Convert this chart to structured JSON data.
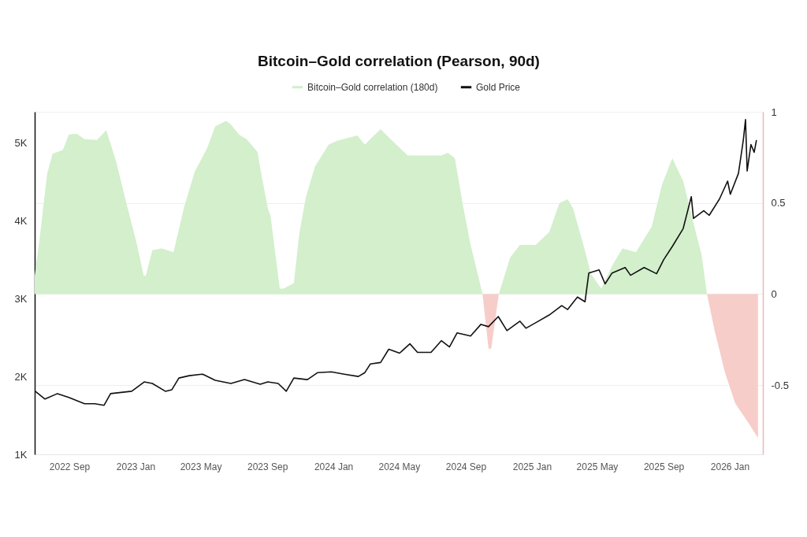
{
  "chart_data": {
    "type": "area",
    "title": "Bitcoin–Gold correlation (Pearson, 90d)",
    "xlim": [
      "2022-06-29",
      "2026-03-03"
    ],
    "xticks": [
      {
        "value": "2022-09",
        "label": "2022 Sep"
      },
      {
        "value": "2023-01",
        "label": "2023 Jan"
      },
      {
        "value": "2023-05",
        "label": "2023 May"
      },
      {
        "value": "2023-09",
        "label": "2023 Sep"
      },
      {
        "value": "2024-01",
        "label": "2024 Jan"
      },
      {
        "value": "2024-05",
        "label": "2024 May"
      },
      {
        "value": "2024-09",
        "label": "2024 Sep"
      },
      {
        "value": "2025-01",
        "label": "2025 Jan"
      },
      {
        "value": "2025-05",
        "label": "2025 May"
      },
      {
        "value": "2025-09",
        "label": "2025 Sep"
      },
      {
        "value": "2026-01",
        "label": "2026 Jan"
      }
    ],
    "ylim": [
      1000,
      5400
    ],
    "yticks": [
      {
        "value": 1000,
        "label": "1K"
      },
      {
        "value": 2000,
        "label": "2K"
      },
      {
        "value": 3000,
        "label": "3K"
      },
      {
        "value": 4000,
        "label": "4K"
      },
      {
        "value": 5000,
        "label": "5K"
      }
    ],
    "y2lim": [
      -0.88,
      1
    ],
    "y2ticks": [
      -0.5,
      0,
      0.5,
      1
    ],
    "grid": true,
    "legend": "top",
    "series": [
      {
        "name": "Bitcoin–Gold correlation (180d)",
        "axis": "y2",
        "color": "#d3efcc",
        "x": [
          "2022-06-29",
          "2022-07-08",
          "2022-07-22",
          "2022-08-01",
          "2022-08-20",
          "2022-08-31",
          "2022-09-14",
          "2022-09-29",
          "2022-10-22",
          "2022-11-08",
          "2022-11-26",
          "2022-12-15",
          "2023-01-03",
          "2023-01-16",
          "2023-01-20",
          "2023-02-01",
          "2023-02-18",
          "2023-03-12",
          "2023-03-31",
          "2023-04-20",
          "2023-05-13",
          "2023-05-28",
          "2023-06-17",
          "2023-06-26",
          "2023-07-11",
          "2023-07-25",
          "2023-08-14",
          "2023-08-19",
          "2023-09-02",
          "2023-09-07",
          "2023-09-24",
          "2023-10-01",
          "2023-10-20",
          "2023-10-30",
          "2023-11-11",
          "2023-11-28",
          "2023-12-23",
          "2024-01-07",
          "2024-02-14",
          "2024-02-28",
          "2024-03-09",
          "2024-03-28",
          "2024-04-17",
          "2024-05-17",
          "2024-07-18",
          "2024-07-30",
          "2024-08-12",
          "2024-08-26",
          "2024-09-10",
          "2024-10-02",
          "2024-11-01",
          "2024-11-22",
          "2024-12-10",
          "2025-01-08",
          "2025-02-02",
          "2025-02-21",
          "2025-03-08",
          "2025-03-18",
          "2025-04-06",
          "2025-04-20",
          "2025-05-09",
          "2025-05-29",
          "2025-06-17",
          "2025-07-12",
          "2025-08-10",
          "2025-08-29",
          "2025-09-17",
          "2025-10-07",
          "2025-10-26",
          "2025-11-10",
          "2025-11-20"
        ],
        "values": [
          0.1,
          0.3,
          0.66,
          0.77,
          0.79,
          0.875,
          0.88,
          0.85,
          0.845,
          0.9,
          0.73,
          0.5,
          0.28,
          0.1,
          0.1,
          0.24,
          0.25,
          0.23,
          0.47,
          0.67,
          0.8,
          0.92,
          0.95,
          0.93,
          0.875,
          0.85,
          0.78,
          0.69,
          0.47,
          0.43,
          0.03,
          0.03,
          0.06,
          0.33,
          0.53,
          0.7,
          0.82,
          0.84,
          0.87,
          0.82,
          0.85,
          0.905,
          0.845,
          0.76,
          0.76,
          0.775,
          0.745,
          0.5,
          0.27,
          0,
          0,
          0.2,
          0.27,
          0.27,
          0.34,
          0.5,
          0.52,
          0.47,
          0.27,
          0.11,
          0.03,
          0.155,
          0.25,
          0.23,
          0.37,
          0.6,
          0.745,
          0.62,
          0.39,
          0.215,
          0
        ]
      },
      {
        "axis": "y2",
        "color": "#f7cdc9",
        "x": [
          "2024-10-02",
          "2024-10-13",
          "2024-10-18",
          "2024-11-01",
          "2025-11-20",
          "2025-12-04",
          "2025-12-23",
          "2026-01-11",
          "2026-02-05",
          "2026-02-22"
        ],
        "values": [
          0,
          -0.3,
          -0.3,
          0,
          0,
          -0.2,
          -0.43,
          -0.6,
          -0.71,
          -0.79
        ]
      },
      {
        "name": "Gold Price",
        "type": "line",
        "color": "#111111",
        "x": [
          "2022-06-30",
          "2022-07-18",
          "2022-08-10",
          "2022-08-31",
          "2022-09-29",
          "2022-10-18",
          "2022-11-04",
          "2022-11-16",
          "2022-12-25",
          "2023-01-17",
          "2023-02-01",
          "2023-02-25",
          "2023-03-09",
          "2023-03-22",
          "2023-04-10",
          "2023-05-05",
          "2023-05-28",
          "2023-06-26",
          "2023-07-21",
          "2023-08-19",
          "2023-09-02",
          "2023-09-21",
          "2023-10-06",
          "2023-10-20",
          "2023-11-14",
          "2023-12-03",
          "2023-12-28",
          "2024-01-21",
          "2024-02-16",
          "2024-02-28",
          "2024-03-09",
          "2024-03-28",
          "2024-04-12",
          "2024-05-02",
          "2024-05-21",
          "2024-06-04",
          "2024-06-29",
          "2024-07-18",
          "2024-08-02",
          "2024-08-16",
          "2024-09-10",
          "2024-09-29",
          "2024-10-13",
          "2024-10-31",
          "2024-11-16",
          "2024-12-10",
          "2024-12-21",
          "2025-01-08",
          "2025-02-02",
          "2025-02-25",
          "2025-03-08",
          "2025-03-26",
          "2025-04-09",
          "2025-04-16",
          "2025-05-05",
          "2025-05-16",
          "2025-05-29",
          "2025-06-22",
          "2025-07-02",
          "2025-07-27",
          "2025-08-19",
          "2025-09-01",
          "2025-09-17",
          "2025-10-07",
          "2025-10-22",
          "2025-10-26",
          "2025-11-14",
          "2025-11-24",
          "2025-12-13",
          "2025-12-28",
          "2026-01-02",
          "2026-01-17",
          "2026-01-26",
          "2026-01-30",
          "2026-02-02",
          "2026-02-09",
          "2026-02-15",
          "2026-02-19"
        ],
        "values": [
          1810,
          1710,
          1780,
          1730,
          1650,
          1650,
          1630,
          1780,
          1810,
          1930,
          1910,
          1810,
          1830,
          1980,
          2010,
          2030,
          1950,
          1910,
          1960,
          1900,
          1930,
          1910,
          1810,
          1980,
          1960,
          2050,
          2060,
          2030,
          2000,
          2050,
          2160,
          2180,
          2350,
          2300,
          2420,
          2310,
          2310,
          2460,
          2380,
          2560,
          2520,
          2670,
          2640,
          2770,
          2590,
          2710,
          2620,
          2690,
          2790,
          2910,
          2860,
          3020,
          2960,
          3330,
          3370,
          3190,
          3330,
          3400,
          3300,
          3400,
          3320,
          3500,
          3670,
          3900,
          4310,
          4030,
          4130,
          4070,
          4280,
          4510,
          4340,
          4610,
          5040,
          5300,
          4640,
          4980,
          4880,
          5030
        ]
      }
    ]
  }
}
